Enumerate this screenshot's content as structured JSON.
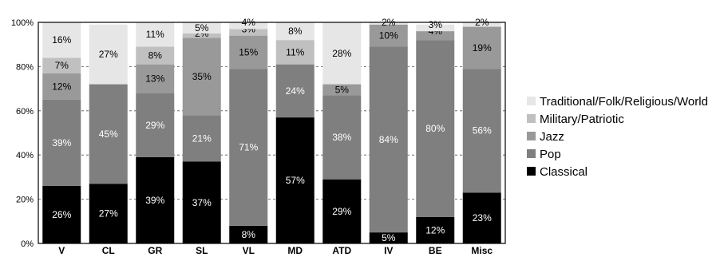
{
  "chart_data": {
    "type": "bar",
    "stacked": true,
    "categories": [
      "V",
      "CL",
      "GR",
      "SL",
      "VL",
      "MD",
      "ATD",
      "IV",
      "BE",
      "Misc"
    ],
    "series": [
      {
        "name": "Classical",
        "color": "#000000",
        "text_color": "#ffffff",
        "values": [
          26,
          27,
          39,
          37,
          8,
          57,
          29,
          5,
          12,
          23
        ],
        "labels": [
          "26%",
          "27%",
          "39%",
          "37%",
          "8%",
          "57%",
          "29%",
          "5%",
          "12%",
          "23%"
        ]
      },
      {
        "name": "Pop",
        "color": "#7f7f7f",
        "text_color": "#ffffff",
        "values": [
          39,
          45,
          29,
          21,
          71,
          24,
          38,
          84,
          80,
          56
        ],
        "labels": [
          "39%",
          "45%",
          "29%",
          "21%",
          "71%",
          "24%",
          "38%",
          "84%",
          "80%",
          "56%"
        ]
      },
      {
        "name": "Jazz",
        "color": "#999999",
        "text_color": "#000000",
        "values": [
          12,
          0,
          13,
          35,
          15,
          0,
          5,
          10,
          4,
          19
        ],
        "labels": [
          "12%",
          "",
          "13%",
          "35%",
          "15%",
          "",
          "5%",
          "10%",
          "4%",
          "19%"
        ]
      },
      {
        "name": "Military/Patriotic",
        "color": "#c0c0c0",
        "text_color": "#000000",
        "values": [
          7,
          0,
          8,
          2,
          3,
          11,
          0,
          0,
          0,
          0
        ],
        "labels": [
          "7%",
          "",
          "8%",
          "2%",
          "3%",
          "11%",
          "",
          "",
          "",
          ""
        ]
      },
      {
        "name": "Traditional/Folk/Religious/World",
        "color": "#e6e6e6",
        "text_color": "#000000",
        "values": [
          16,
          27,
          11,
          5,
          4,
          8,
          28,
          2,
          3,
          2
        ],
        "labels": [
          "16%",
          "27%",
          "11%",
          "5%",
          "4%",
          "8%",
          "28%",
          "2%",
          "3%",
          "2%"
        ]
      }
    ],
    "y_ticks": [
      "0%",
      "20%",
      "40%",
      "60%",
      "80%",
      "100%"
    ],
    "ylim": [
      0,
      100
    ],
    "legend": {
      "placement": "right",
      "entries": [
        "Traditional/Folk/Religious/World",
        "Military/Patriotic",
        "Jazz",
        "Pop",
        "Classical"
      ]
    },
    "grid": true
  }
}
